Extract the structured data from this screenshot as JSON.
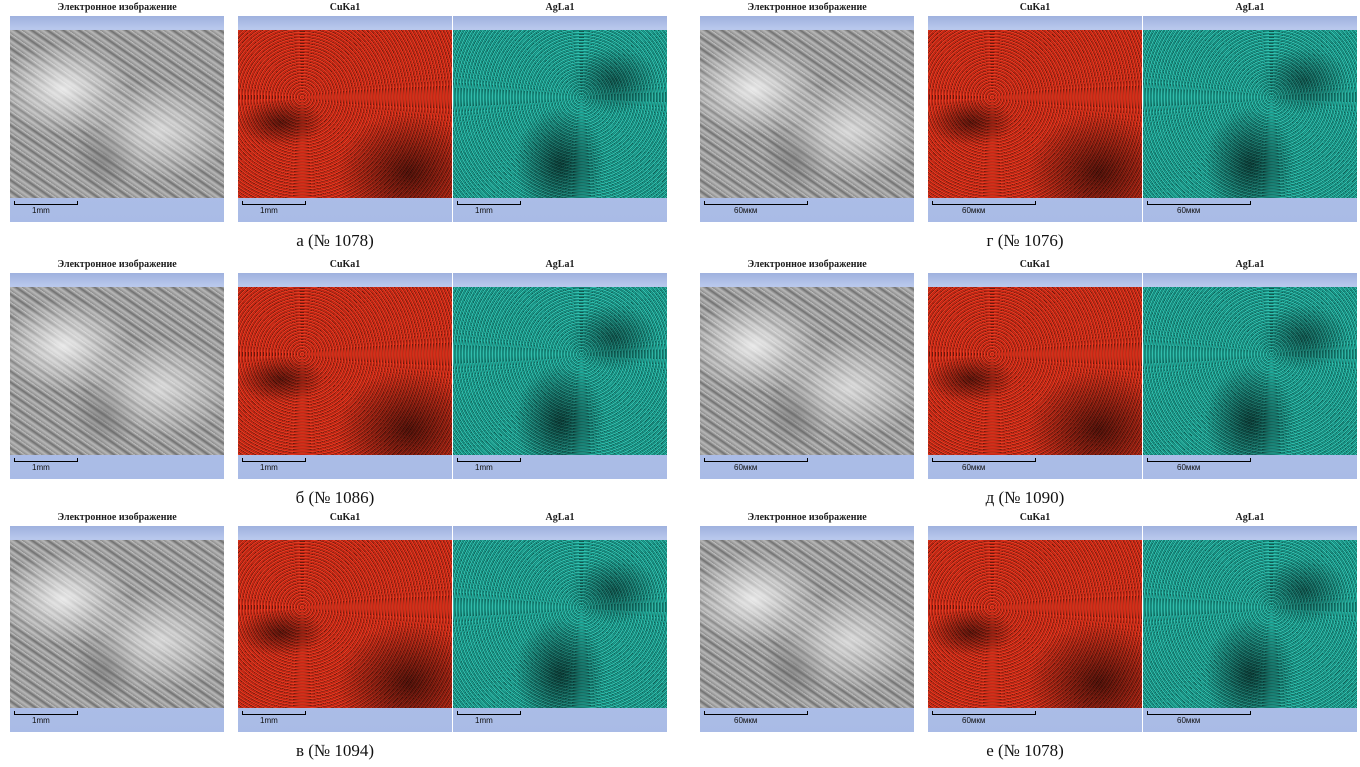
{
  "panel_titles": {
    "electron": "Электронное изображение",
    "cu": "CuKa1",
    "ag": "AgLa1"
  },
  "scales": {
    "mm": "1mm",
    "mkm": "60мкм"
  },
  "groups": [
    {
      "caption": "а (№ 1078)"
    },
    {
      "caption": "б (№ 1086)"
    },
    {
      "caption": "в (№ 1094)"
    },
    {
      "caption": "г (№ 1076)"
    },
    {
      "caption": "д (№ 1090)"
    },
    {
      "caption": "е (№ 1078)"
    }
  ],
  "colors": {
    "cu_map": "#d02a15",
    "ag_map": "#1fae9c",
    "frame": "#a9bbe6"
  }
}
